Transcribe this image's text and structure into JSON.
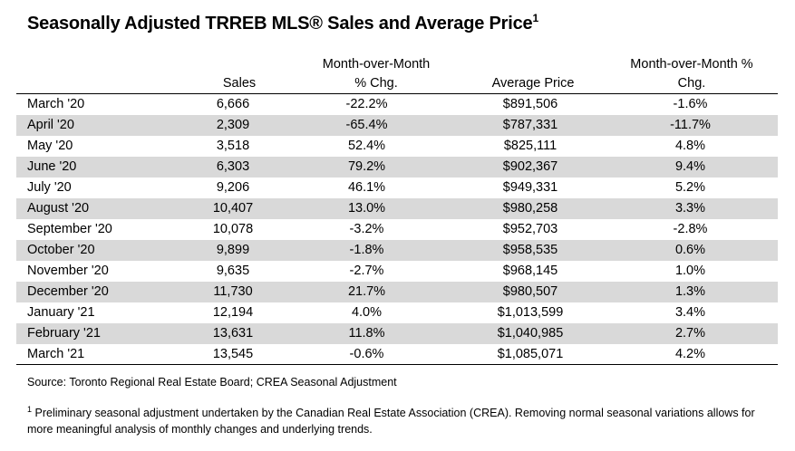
{
  "title": "Seasonally Adjusted TRREB MLS® Sales and Average Price",
  "title_footnote_mark": "1",
  "headers": {
    "sales": "Sales",
    "sales_mom_line1": "Month-over-Month",
    "sales_mom_line2": "% Chg.",
    "avg_price": "Average Price",
    "price_mom_line1": "Month-over-Month %",
    "price_mom_line2": "Chg."
  },
  "rows": [
    {
      "month": "March '20",
      "sales": "6,666",
      "sales_chg": "-22.2%",
      "price": "$891,506",
      "price_chg": "-1.6%"
    },
    {
      "month": "April '20",
      "sales": "2,309",
      "sales_chg": "-65.4%",
      "price": "$787,331",
      "price_chg": "-11.7%"
    },
    {
      "month": "May '20",
      "sales": "3,518",
      "sales_chg": "52.4%",
      "price": "$825,111",
      "price_chg": "4.8%"
    },
    {
      "month": "June '20",
      "sales": "6,303",
      "sales_chg": "79.2%",
      "price": "$902,367",
      "price_chg": "9.4%"
    },
    {
      "month": "July '20",
      "sales": "9,206",
      "sales_chg": "46.1%",
      "price": "$949,331",
      "price_chg": "5.2%"
    },
    {
      "month": "August '20",
      "sales": "10,407",
      "sales_chg": "13.0%",
      "price": "$980,258",
      "price_chg": "3.3%"
    },
    {
      "month": "September '20",
      "sales": "10,078",
      "sales_chg": "-3.2%",
      "price": "$952,703",
      "price_chg": "-2.8%"
    },
    {
      "month": "October '20",
      "sales": "9,899",
      "sales_chg": "-1.8%",
      "price": "$958,535",
      "price_chg": "0.6%"
    },
    {
      "month": "November '20",
      "sales": "9,635",
      "sales_chg": "-2.7%",
      "price": "$968,145",
      "price_chg": "1.0%"
    },
    {
      "month": "December '20",
      "sales": "11,730",
      "sales_chg": "21.7%",
      "price": "$980,507",
      "price_chg": "1.3%"
    },
    {
      "month": "January '21",
      "sales": "12,194",
      "sales_chg": "4.0%",
      "price": "$1,013,599",
      "price_chg": "3.4%"
    },
    {
      "month": "February '21",
      "sales": "13,631",
      "sales_chg": "11.8%",
      "price": "$1,040,985",
      "price_chg": "2.7%"
    },
    {
      "month": "March '21",
      "sales": "13,545",
      "sales_chg": "-0.6%",
      "price": "$1,085,071",
      "price_chg": "4.2%"
    }
  ],
  "source": "Source: Toronto Regional Real Estate Board; CREA Seasonal Adjustment",
  "footnote_mark": "1",
  "footnote": " Preliminary seasonal adjustment undertaken by the Canadian Real Estate Association (CREA).  Removing normal seasonal variations allows for more meaningful analysis of monthly changes and underlying trends.",
  "colors": {
    "shade_row": "#d9d9d9",
    "rule": "#000000"
  }
}
